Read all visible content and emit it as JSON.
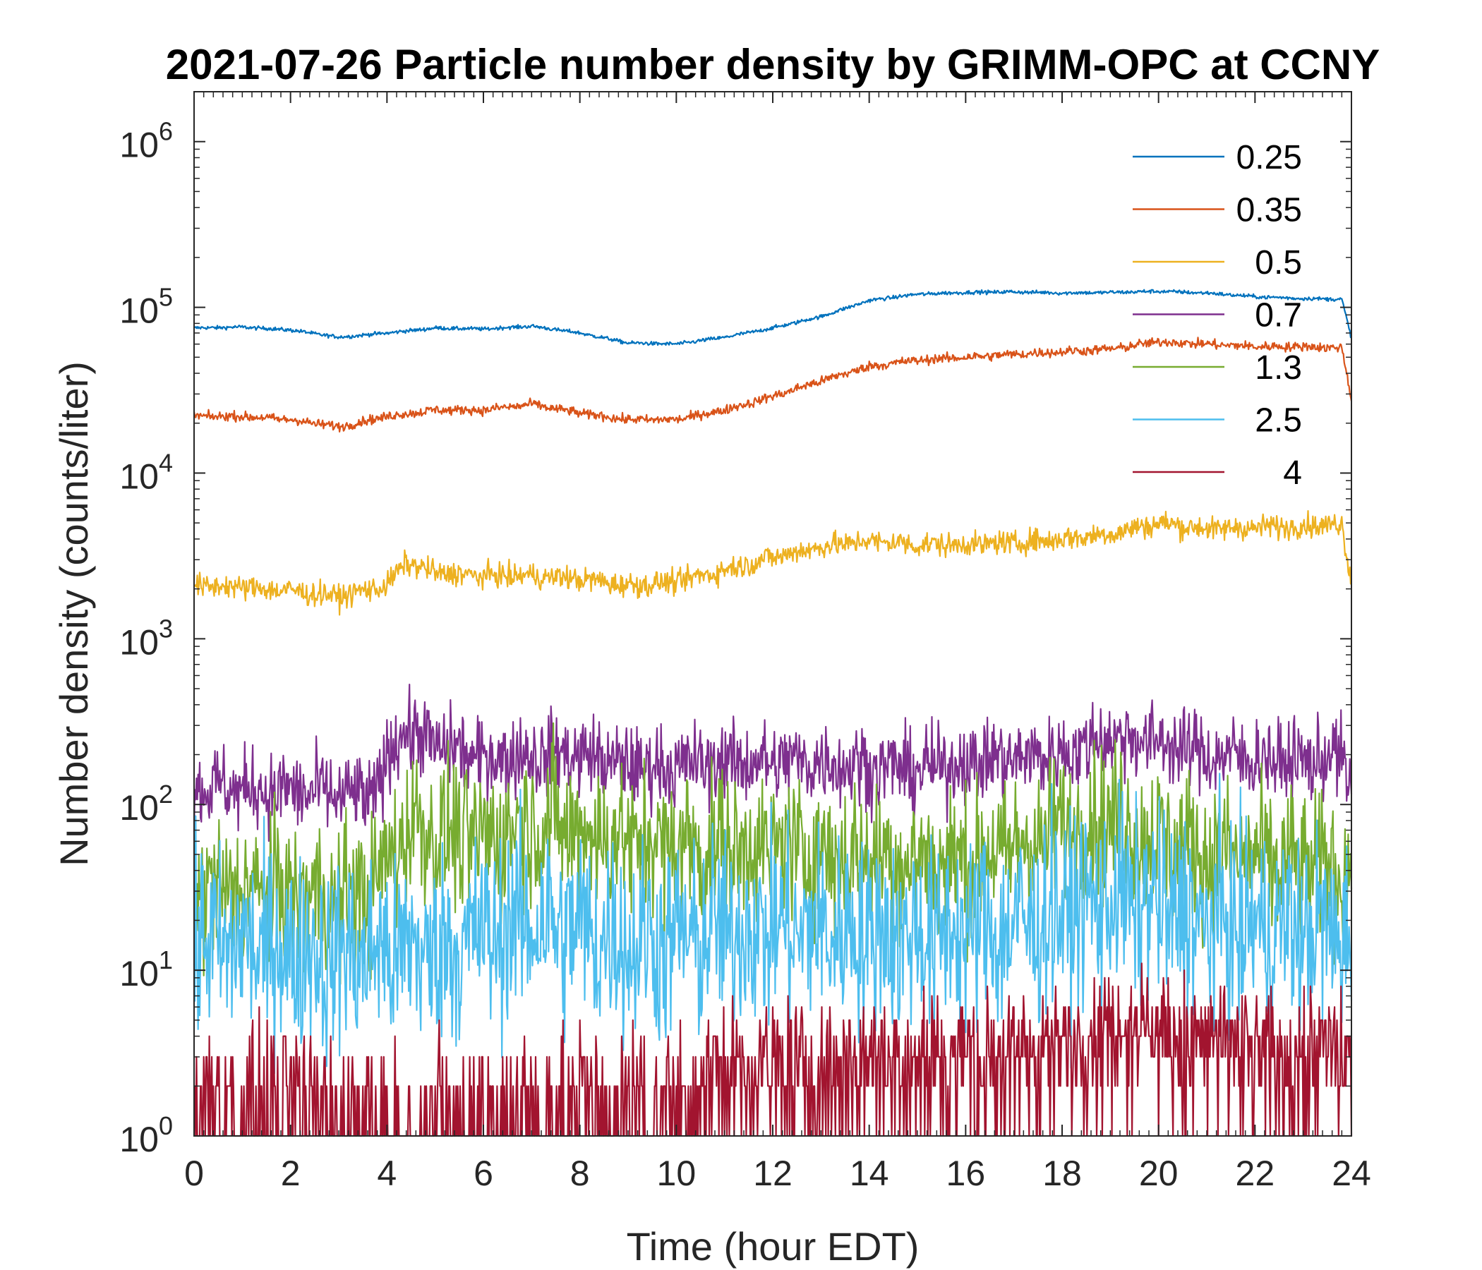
{
  "chart_data": {
    "type": "line",
    "title": "2021-07-26 Particle number density by GRIMM-OPC at CCNY",
    "xlabel": "Time (hour EDT)",
    "ylabel": "Number density (counts/liter)",
    "xlim": [
      0,
      24
    ],
    "ylim": [
      1,
      2000000
    ],
    "yscale": "log",
    "x_ticks": [
      "0",
      "2",
      "4",
      "6",
      "8",
      "10",
      "12",
      "14",
      "16",
      "18",
      "20",
      "22",
      "24"
    ],
    "y_ticks": [
      {
        "base": "10",
        "exp": "0",
        "value": 1
      },
      {
        "base": "10",
        "exp": "1",
        "value": 10
      },
      {
        "base": "10",
        "exp": "2",
        "value": 100
      },
      {
        "base": "10",
        "exp": "3",
        "value": 1000
      },
      {
        "base": "10",
        "exp": "4",
        "value": 10000
      },
      {
        "base": "10",
        "exp": "5",
        "value": 100000
      },
      {
        "base": "10",
        "exp": "6",
        "value": 1000000
      }
    ],
    "legend_position": "top-right",
    "series": [
      {
        "name": "0.25",
        "color": "#0072BD",
        "noise": 0.008,
        "x": [
          0,
          1,
          2,
          3,
          4,
          5,
          6,
          7,
          8,
          9,
          10,
          11,
          12,
          13,
          14,
          15,
          16,
          17,
          18,
          19,
          20,
          21,
          22,
          23,
          23.8,
          24
        ],
        "y": [
          75000,
          76000,
          73000,
          66000,
          70000,
          75000,
          74000,
          77000,
          70000,
          61000,
          60000,
          66000,
          75000,
          88000,
          110000,
          120000,
          123000,
          124000,
          122000,
          123000,
          125000,
          122000,
          116000,
          113000,
          112000,
          65000
        ]
      },
      {
        "name": "0.35",
        "color": "#D95319",
        "noise": 0.02,
        "x": [
          0,
          1,
          2,
          3,
          4,
          5,
          6,
          7,
          8,
          9,
          10,
          11,
          12,
          13,
          14,
          15,
          16,
          17,
          18,
          19,
          20,
          21,
          22,
          23,
          23.8,
          24
        ],
        "y": [
          22000,
          22000,
          21000,
          19000,
          22000,
          24000,
          24000,
          26000,
          23000,
          21000,
          21000,
          24000,
          29000,
          36000,
          44000,
          48000,
          50000,
          52000,
          54000,
          56000,
          62000,
          60000,
          58000,
          58000,
          57000,
          28000
        ]
      },
      {
        "name": "0.5",
        "color": "#EDB120",
        "noise": 0.05,
        "x": [
          0,
          1,
          2,
          3,
          4,
          4.4,
          5,
          6,
          7,
          8,
          9,
          10,
          11,
          12,
          13,
          14,
          15,
          16,
          17,
          18,
          19,
          20,
          21,
          22,
          23,
          23.8,
          24
        ],
        "y": [
          2100,
          2050,
          1950,
          1800,
          2100,
          2900,
          2500,
          2400,
          2400,
          2300,
          2100,
          2200,
          2600,
          3100,
          3600,
          3900,
          3700,
          3700,
          3800,
          4000,
          4300,
          5000,
          4600,
          4700,
          4800,
          4900,
          2200
        ]
      },
      {
        "name": "0.7",
        "color": "#7E2F8E",
        "noise": 0.17,
        "x": [
          0,
          1,
          2,
          3,
          3.7,
          4.3,
          5,
          6,
          7,
          8,
          9,
          10,
          11,
          12,
          13,
          14,
          15,
          16,
          17,
          18,
          19,
          20,
          21,
          22,
          23,
          23.8,
          24
        ],
        "y": [
          130,
          125,
          120,
          115,
          110,
          290,
          230,
          190,
          200,
          200,
          170,
          170,
          180,
          180,
          180,
          170,
          160,
          180,
          190,
          200,
          260,
          240,
          200,
          190,
          180,
          200,
          110
        ]
      },
      {
        "name": "1.3",
        "color": "#77AC30",
        "noise": 0.32,
        "x": [
          0,
          1,
          2,
          3,
          3.7,
          4.5,
          5,
          6,
          7,
          8,
          9,
          10,
          11,
          12,
          13,
          14,
          15,
          16,
          17,
          18,
          19,
          20,
          21,
          22,
          23,
          24
        ],
        "y": [
          30,
          30,
          28,
          27,
          30,
          80,
          65,
          60,
          80,
          70,
          60,
          55,
          55,
          55,
          50,
          48,
          45,
          45,
          55,
          70,
          85,
          60,
          50,
          45,
          42,
          40
        ]
      },
      {
        "name": "2.5",
        "color": "#4DBEEE",
        "noise": 0.42,
        "x": [
          0,
          1,
          2,
          3,
          4,
          5,
          6,
          7,
          8,
          9,
          10,
          11,
          12,
          13,
          14,
          15,
          16,
          17,
          18,
          19,
          20,
          21,
          22,
          23,
          24
        ],
        "y": [
          14,
          14,
          13,
          12,
          13,
          13,
          16,
          20,
          17,
          15,
          15,
          17,
          18,
          17,
          17,
          16,
          17,
          18,
          22,
          27,
          24,
          19,
          18,
          17,
          16
        ]
      },
      {
        "name": "4",
        "color": "#A2142F",
        "noise": 0.0,
        "x": [
          0,
          3,
          4,
          5,
          6,
          7,
          8,
          9,
          10,
          11,
          12,
          13,
          14,
          15,
          16,
          17,
          18,
          19,
          20,
          21,
          22,
          23,
          24
        ],
        "y": [
          1.6,
          1.5,
          1.2,
          1.0,
          1.2,
          1.5,
          1.5,
          1.4,
          1.6,
          2.6,
          2.8,
          2.8,
          3.0,
          3.0,
          3.2,
          3.2,
          3.6,
          5.0,
          4.5,
          3.6,
          3.2,
          3.0,
          3.0
        ]
      }
    ]
  }
}
